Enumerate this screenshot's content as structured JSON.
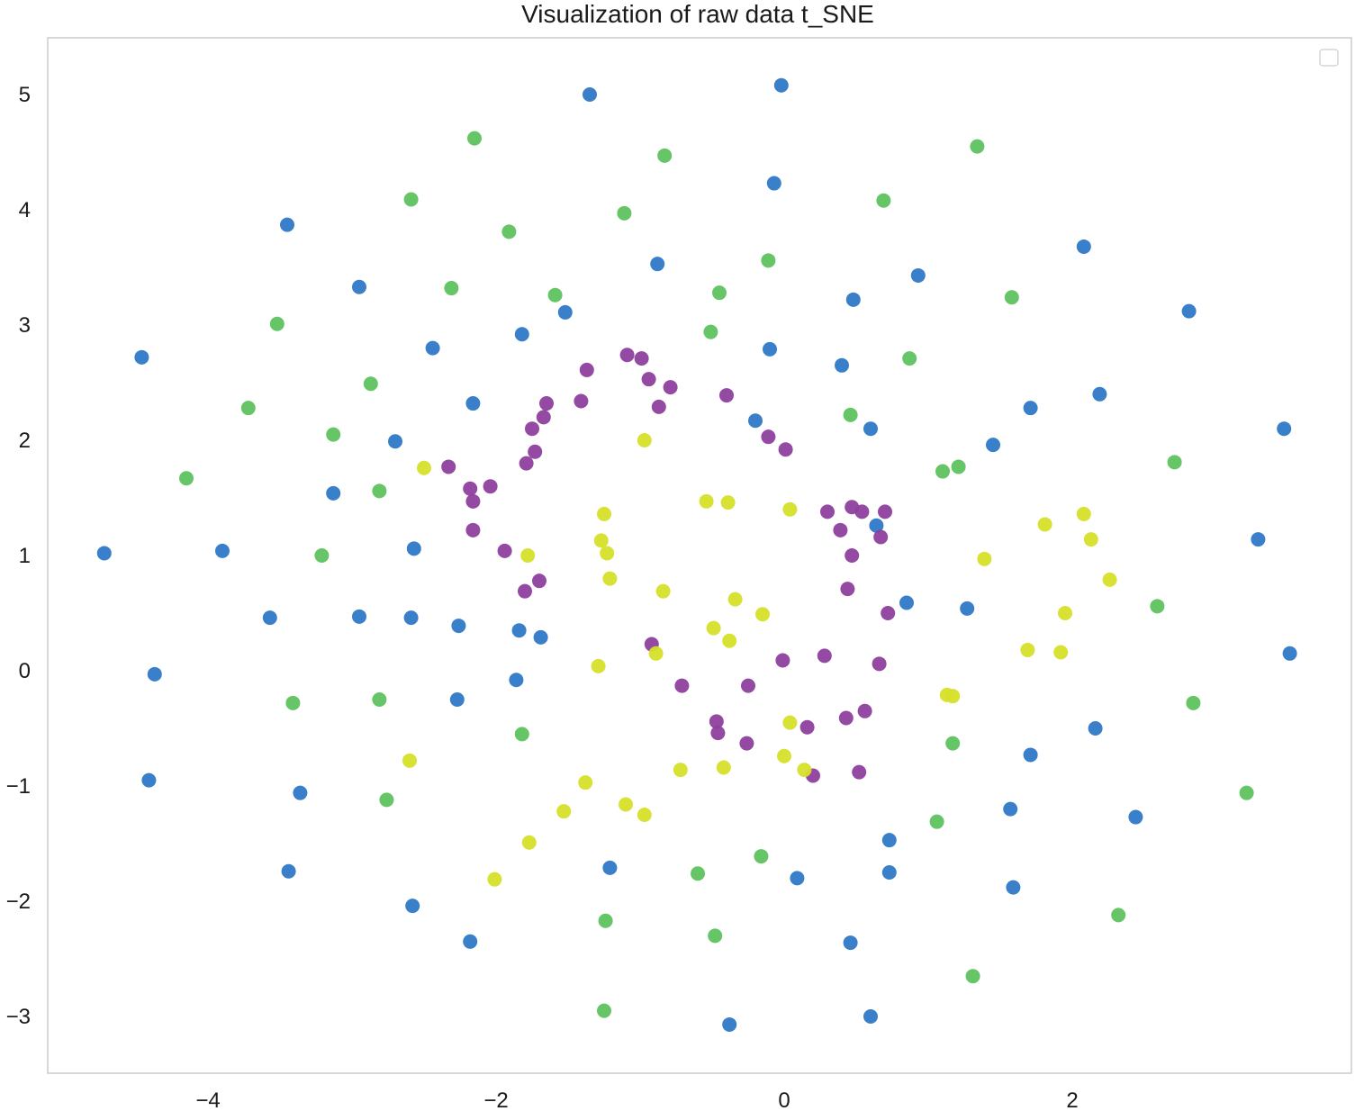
{
  "chart_data": {
    "type": "scatter",
    "title": "Visualization of raw data t_SNE",
    "xlabel": "",
    "ylabel": "",
    "xlim": [
      -5.0,
      4.0
    ],
    "ylim": [
      -3.4,
      5.5
    ],
    "xticks": [
      "−4",
      "−2",
      "0",
      "2"
    ],
    "yticks": [
      "5",
      "4",
      "3",
      "2",
      "1",
      "0",
      "−1",
      "−2",
      "−3"
    ],
    "grid": false,
    "legend": "top-right (empty)",
    "series": [
      {
        "color": "#2f78c6",
        "points": [
          [
            -1.35,
            5.0
          ],
          [
            -0.02,
            5.08
          ],
          [
            -0.07,
            4.23
          ],
          [
            -3.45,
            3.87
          ],
          [
            2.08,
            3.68
          ],
          [
            -2.95,
            3.33
          ],
          [
            -0.88,
            3.53
          ],
          [
            0.93,
            3.43
          ],
          [
            0.48,
            3.22
          ],
          [
            -1.52,
            3.11
          ],
          [
            2.81,
            3.12
          ],
          [
            -1.82,
            2.92
          ],
          [
            -4.46,
            2.72
          ],
          [
            -2.44,
            2.8
          ],
          [
            -0.1,
            2.79
          ],
          [
            0.4,
            2.65
          ],
          [
            2.19,
            2.4
          ],
          [
            -2.16,
            2.32
          ],
          [
            1.71,
            2.28
          ],
          [
            -0.2,
            2.17
          ],
          [
            0.6,
            2.1
          ],
          [
            3.47,
            2.1
          ],
          [
            -2.7,
            1.99
          ],
          [
            1.45,
            1.96
          ],
          [
            -3.13,
            1.54
          ],
          [
            0.64,
            1.26
          ],
          [
            3.29,
            1.14
          ],
          [
            -4.72,
            1.02
          ],
          [
            -3.9,
            1.04
          ],
          [
            -2.57,
            1.06
          ],
          [
            0.85,
            0.59
          ],
          [
            1.27,
            0.54
          ],
          [
            -3.57,
            0.46
          ],
          [
            -2.95,
            0.47
          ],
          [
            -2.59,
            0.46
          ],
          [
            -2.26,
            0.39
          ],
          [
            -1.84,
            0.35
          ],
          [
            -1.69,
            0.29
          ],
          [
            3.51,
            0.15
          ],
          [
            -4.37,
            -0.03
          ],
          [
            -1.86,
            -0.08
          ],
          [
            -2.27,
            -0.25
          ],
          [
            2.16,
            -0.5
          ],
          [
            1.71,
            -0.73
          ],
          [
            -4.41,
            -0.95
          ],
          [
            -3.36,
            -1.06
          ],
          [
            1.57,
            -1.2
          ],
          [
            2.44,
            -1.27
          ],
          [
            0.73,
            -1.47
          ],
          [
            -3.44,
            -1.74
          ],
          [
            -1.21,
            -1.71
          ],
          [
            0.73,
            -1.75
          ],
          [
            0.09,
            -1.8
          ],
          [
            1.59,
            -1.88
          ],
          [
            -2.58,
            -2.04
          ],
          [
            -2.18,
            -2.35
          ],
          [
            0.46,
            -2.36
          ],
          [
            0.6,
            -3.0
          ],
          [
            -0.38,
            -3.07
          ]
        ]
      },
      {
        "color": "#5ec25e",
        "points": [
          [
            -2.15,
            4.62
          ],
          [
            -0.83,
            4.47
          ],
          [
            1.34,
            4.55
          ],
          [
            -2.59,
            4.09
          ],
          [
            0.69,
            4.08
          ],
          [
            -1.11,
            3.97
          ],
          [
            -1.91,
            3.81
          ],
          [
            -0.11,
            3.56
          ],
          [
            -2.31,
            3.32
          ],
          [
            -1.59,
            3.26
          ],
          [
            -0.45,
            3.28
          ],
          [
            1.58,
            3.24
          ],
          [
            -3.52,
            3.01
          ],
          [
            -0.51,
            2.94
          ],
          [
            0.87,
            2.71
          ],
          [
            -2.87,
            2.49
          ],
          [
            -3.72,
            2.28
          ],
          [
            0.46,
            2.22
          ],
          [
            -3.13,
            2.05
          ],
          [
            1.1,
            1.73
          ],
          [
            1.21,
            1.77
          ],
          [
            2.71,
            1.81
          ],
          [
            -4.15,
            1.67
          ],
          [
            -2.81,
            1.56
          ],
          [
            -3.21,
            1.0
          ],
          [
            2.59,
            0.56
          ],
          [
            -3.41,
            -0.28
          ],
          [
            -2.81,
            -0.25
          ],
          [
            2.84,
            -0.28
          ],
          [
            -1.82,
            -0.55
          ],
          [
            1.17,
            -0.63
          ],
          [
            -2.76,
            -1.12
          ],
          [
            3.21,
            -1.06
          ],
          [
            1.06,
            -1.31
          ],
          [
            -0.6,
            -1.76
          ],
          [
            -0.16,
            -1.61
          ],
          [
            2.32,
            -2.12
          ],
          [
            -1.24,
            -2.17
          ],
          [
            -0.48,
            -2.3
          ],
          [
            1.31,
            -2.65
          ],
          [
            -1.25,
            -2.95
          ]
        ]
      },
      {
        "color": "#8e3f9e",
        "points": [
          [
            -1.09,
            2.74
          ],
          [
            -0.99,
            2.71
          ],
          [
            -1.37,
            2.61
          ],
          [
            -0.94,
            2.53
          ],
          [
            -0.79,
            2.46
          ],
          [
            -1.65,
            2.32
          ],
          [
            -1.41,
            2.34
          ],
          [
            -0.87,
            2.29
          ],
          [
            -0.4,
            2.39
          ],
          [
            -1.67,
            2.2
          ],
          [
            -1.75,
            2.1
          ],
          [
            -0.11,
            2.03
          ],
          [
            0.01,
            1.92
          ],
          [
            -1.73,
            1.9
          ],
          [
            -1.79,
            1.8
          ],
          [
            -2.33,
            1.77
          ],
          [
            -2.04,
            1.6
          ],
          [
            -2.18,
            1.58
          ],
          [
            -2.16,
            1.47
          ],
          [
            0.3,
            1.38
          ],
          [
            0.47,
            1.42
          ],
          [
            0.54,
            1.38
          ],
          [
            0.7,
            1.38
          ],
          [
            -2.16,
            1.22
          ],
          [
            0.39,
            1.22
          ],
          [
            0.67,
            1.16
          ],
          [
            -1.94,
            1.04
          ],
          [
            0.47,
            1.0
          ],
          [
            -1.7,
            0.78
          ],
          [
            -1.8,
            0.69
          ],
          [
            0.44,
            0.71
          ],
          [
            0.72,
            0.5
          ],
          [
            -0.92,
            0.23
          ],
          [
            0.28,
            0.13
          ],
          [
            -0.01,
            0.09
          ],
          [
            0.66,
            0.06
          ],
          [
            -0.71,
            -0.13
          ],
          [
            -0.25,
            -0.13
          ],
          [
            0.43,
            -0.41
          ],
          [
            0.56,
            -0.35
          ],
          [
            -0.47,
            -0.44
          ],
          [
            -0.46,
            -0.54
          ],
          [
            0.16,
            -0.49
          ],
          [
            -0.26,
            -0.63
          ],
          [
            0.52,
            -0.88
          ],
          [
            0.2,
            -0.91
          ]
        ]
      },
      {
        "color": "#d6e02a",
        "points": [
          [
            -0.97,
            2.0
          ],
          [
            -2.5,
            1.76
          ],
          [
            -0.54,
            1.47
          ],
          [
            -0.39,
            1.46
          ],
          [
            0.04,
            1.4
          ],
          [
            -1.25,
            1.36
          ],
          [
            2.08,
            1.36
          ],
          [
            1.81,
            1.27
          ],
          [
            -1.27,
            1.13
          ],
          [
            2.13,
            1.14
          ],
          [
            -1.78,
            1.0
          ],
          [
            -1.23,
            1.02
          ],
          [
            1.39,
            0.97
          ],
          [
            -1.21,
            0.8
          ],
          [
            2.26,
            0.79
          ],
          [
            -0.84,
            0.69
          ],
          [
            -0.34,
            0.62
          ],
          [
            -0.15,
            0.49
          ],
          [
            1.95,
            0.5
          ],
          [
            -0.49,
            0.37
          ],
          [
            -0.38,
            0.26
          ],
          [
            -0.89,
            0.15
          ],
          [
            1.69,
            0.18
          ],
          [
            1.92,
            0.16
          ],
          [
            -1.29,
            0.04
          ],
          [
            1.13,
            -0.21
          ],
          [
            1.17,
            -0.22
          ],
          [
            0.04,
            -0.45
          ],
          [
            0.0,
            -0.74
          ],
          [
            -2.6,
            -0.78
          ],
          [
            -0.72,
            -0.86
          ],
          [
            -0.42,
            -0.84
          ],
          [
            0.14,
            -0.86
          ],
          [
            -1.38,
            -0.97
          ],
          [
            -1.1,
            -1.16
          ],
          [
            -1.53,
            -1.22
          ],
          [
            -0.97,
            -1.25
          ],
          [
            -1.77,
            -1.49
          ],
          [
            -2.01,
            -1.81
          ]
        ]
      }
    ]
  }
}
